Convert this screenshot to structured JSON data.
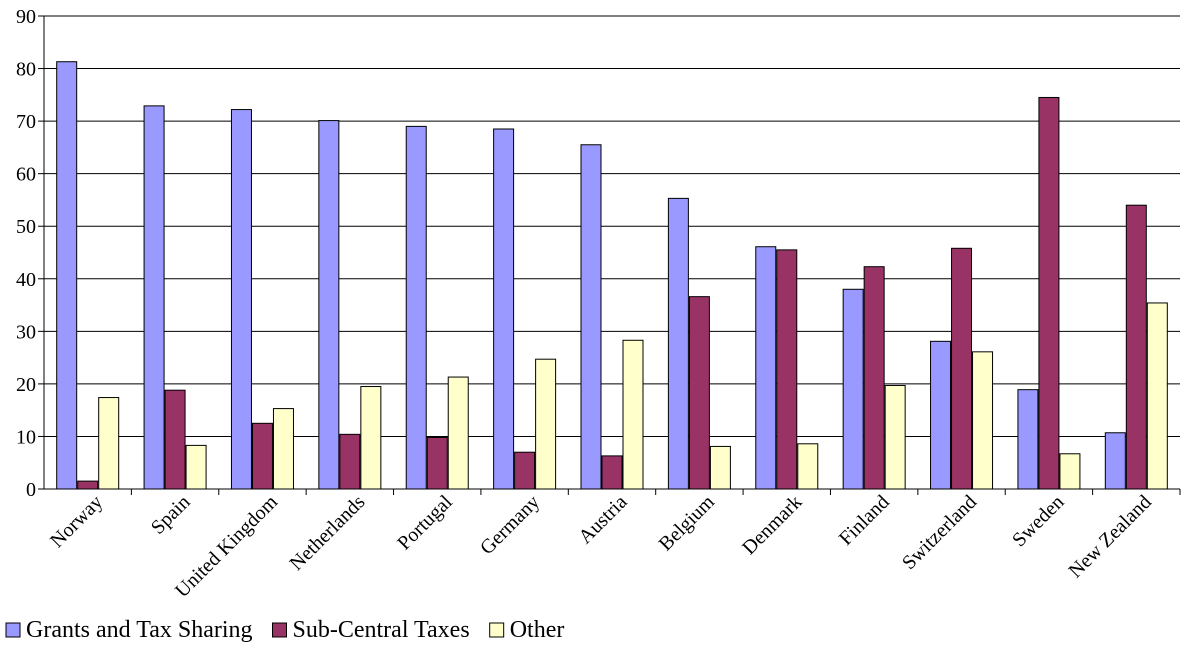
{
  "chart_data": {
    "type": "bar",
    "title": "",
    "xlabel": "",
    "ylabel": "",
    "ylim": [
      0,
      90
    ],
    "yticks": [
      0,
      10,
      20,
      30,
      40,
      50,
      60,
      70,
      80,
      90
    ],
    "grid": "horizontal",
    "legend_position": "bottom-left",
    "categories": [
      "Norway",
      "Spain",
      "United Kingdom",
      "Netherlands",
      "Portugal",
      "Germany",
      "Austria",
      "Belgium",
      "Denmark",
      "Finland",
      "Switzerland",
      "Sweden",
      "New Zealand"
    ],
    "series": [
      {
        "name": "Grants and Tax Sharing",
        "color": "#9999ff",
        "values": [
          81.3,
          72.9,
          72.2,
          70.1,
          69.0,
          68.5,
          65.5,
          55.3,
          46.1,
          38.0,
          28.1,
          18.9,
          10.7
        ]
      },
      {
        "name": "Sub-Central Taxes",
        "color": "#993366",
        "values": [
          1.5,
          18.8,
          12.5,
          10.4,
          9.8,
          7.0,
          6.3,
          36.6,
          45.5,
          42.3,
          45.8,
          74.5,
          54.0
        ]
      },
      {
        "name": "Other",
        "color": "#ffffcc",
        "values": [
          17.4,
          8.3,
          15.3,
          19.5,
          21.3,
          24.7,
          28.3,
          8.1,
          8.6,
          19.7,
          26.1,
          6.7,
          35.4
        ]
      }
    ]
  }
}
